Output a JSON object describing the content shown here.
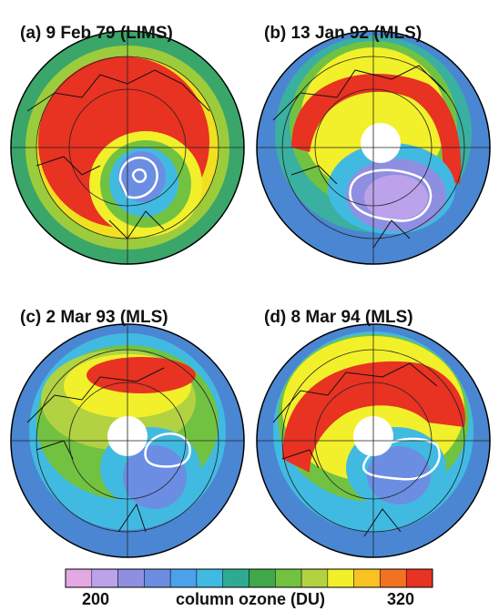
{
  "panels": [
    {
      "label": "(a) 9 Feb 79 (LIMS)"
    },
    {
      "label": "(b) 13 Jan 92 (MLS)"
    },
    {
      "label": "(c) 2 Mar 93 (MLS)"
    },
    {
      "label": "(d) 8 Mar 94 (MLS)"
    }
  ],
  "colorbar": {
    "min": 200,
    "max": 320,
    "label": "column ozone (DU)",
    "colors": [
      "#e2a9e2",
      "#bba2ea",
      "#8f8fe2",
      "#6b8ee2",
      "#4ba2ea",
      "#41bae2",
      "#2faa92",
      "#3fa84a",
      "#72c242",
      "#b2d242",
      "#f2f02a",
      "#f8c222",
      "#f07222",
      "#e83222"
    ]
  }
}
